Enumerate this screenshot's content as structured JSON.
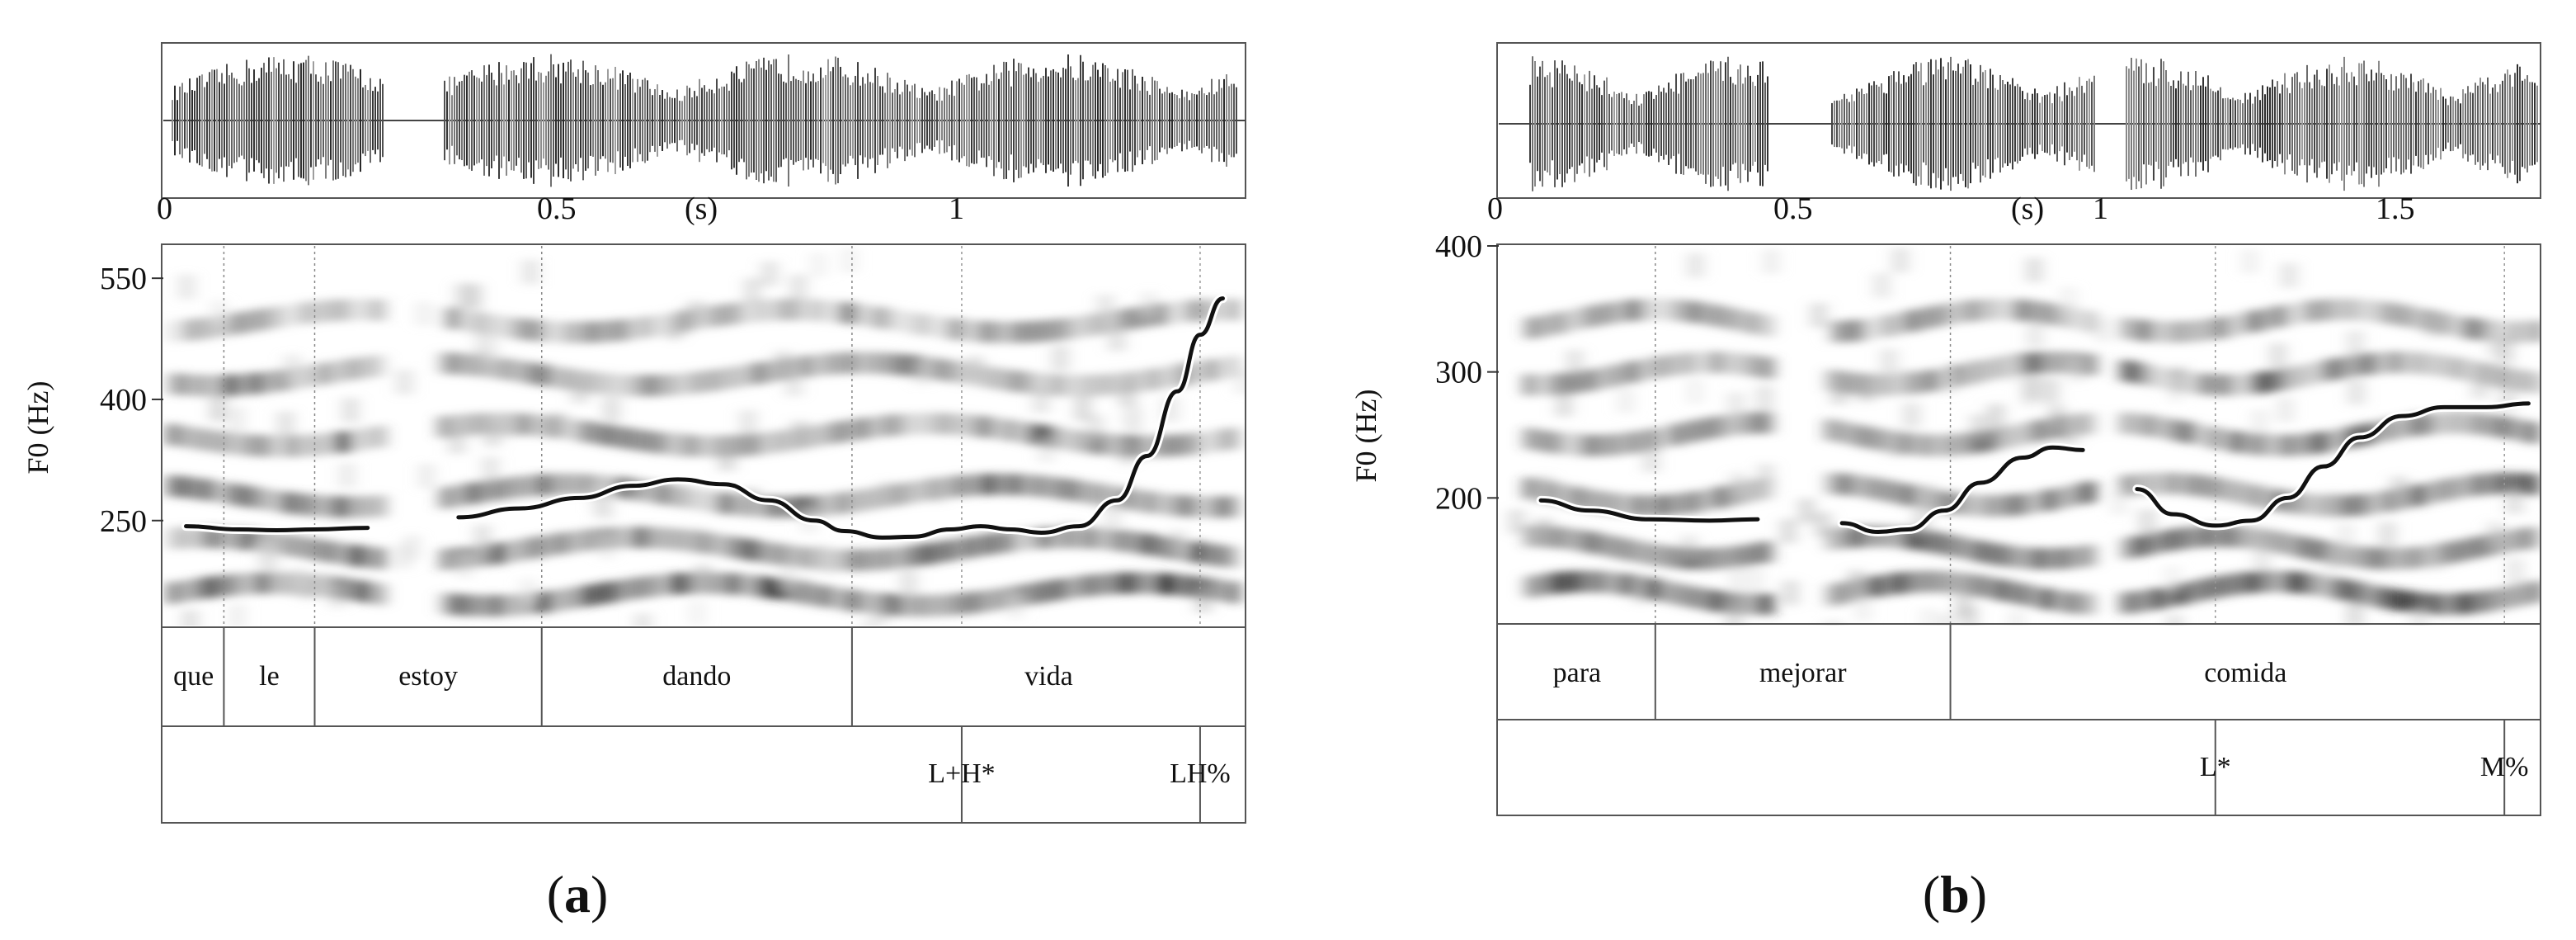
{
  "chart_data": [
    {
      "type": "line",
      "panel_label": "a",
      "ylabel": "F0 (Hz)",
      "time_unit_label": "(s)",
      "time_ticks": [
        "0",
        "0.5",
        "1"
      ],
      "ylim": [
        120,
        590
      ],
      "yticks": [
        250,
        400,
        550
      ],
      "xlim": [
        0,
        1.43
      ],
      "f0_segments": [
        [
          [
            0.03,
            243
          ],
          [
            0.1,
            239
          ],
          [
            0.15,
            238
          ],
          [
            0.2,
            239
          ],
          [
            0.27,
            241
          ]
        ],
        [
          [
            0.39,
            254
          ],
          [
            0.47,
            265
          ],
          [
            0.55,
            278
          ],
          [
            0.62,
            293
          ],
          [
            0.68,
            301
          ],
          [
            0.74,
            295
          ],
          [
            0.8,
            275
          ],
          [
            0.86,
            250
          ],
          [
            0.9,
            237
          ],
          [
            0.95,
            229
          ],
          [
            0.99,
            230
          ],
          [
            1.04,
            239
          ],
          [
            1.08,
            243
          ],
          [
            1.12,
            239
          ],
          [
            1.16,
            235
          ],
          [
            1.21,
            243
          ],
          [
            1.26,
            275
          ],
          [
            1.3,
            330
          ],
          [
            1.34,
            410
          ],
          [
            1.37,
            480
          ],
          [
            1.4,
            525
          ]
        ]
      ],
      "words": [
        {
          "label": "que",
          "start": 0.0,
          "end": 0.08
        },
        {
          "label": "le",
          "start": 0.08,
          "end": 0.2
        },
        {
          "label": "estoy",
          "start": 0.2,
          "end": 0.5
        },
        {
          "label": "dando",
          "start": 0.5,
          "end": 0.91
        },
        {
          "label": "vida",
          "start": 0.91,
          "end": 1.43
        }
      ],
      "tones": [
        {
          "label": "L+H*",
          "time": 1.055
        },
        {
          "label": "LH%",
          "time": 1.37
        }
      ]
    },
    {
      "type": "line",
      "panel_label": "b",
      "ylabel": "F0 (Hz)",
      "time_unit_label": "(s)",
      "time_ticks": [
        "0",
        "0.5",
        "1",
        "1.5"
      ],
      "ylim": [
        100,
        400
      ],
      "yticks": [
        200,
        300,
        400
      ],
      "xlim": [
        0,
        1.73
      ],
      "f0_segments": [
        [
          [
            0.07,
            198
          ],
          [
            0.15,
            190
          ],
          [
            0.25,
            183
          ],
          [
            0.35,
            182
          ],
          [
            0.43,
            183
          ]
        ],
        [
          [
            0.57,
            180
          ],
          [
            0.63,
            173
          ],
          [
            0.68,
            175
          ],
          [
            0.74,
            190
          ],
          [
            0.8,
            212
          ],
          [
            0.87,
            232
          ],
          [
            0.92,
            240
          ],
          [
            0.97,
            238
          ]
        ],
        [
          [
            1.06,
            207
          ],
          [
            1.12,
            187
          ],
          [
            1.19,
            178
          ],
          [
            1.25,
            182
          ],
          [
            1.31,
            200
          ],
          [
            1.37,
            225
          ],
          [
            1.43,
            248
          ],
          [
            1.5,
            265
          ],
          [
            1.57,
            272
          ],
          [
            1.64,
            272
          ],
          [
            1.71,
            275
          ]
        ]
      ],
      "words": [
        {
          "label": "para",
          "start": 0.0,
          "end": 0.26
        },
        {
          "label": "mejorar",
          "start": 0.26,
          "end": 0.75
        },
        {
          "label": "comida",
          "start": 0.75,
          "end": 1.73
        }
      ],
      "tones": [
        {
          "label": "L*",
          "time": 1.19
        },
        {
          "label": "M%",
          "time": 1.67
        }
      ]
    }
  ]
}
